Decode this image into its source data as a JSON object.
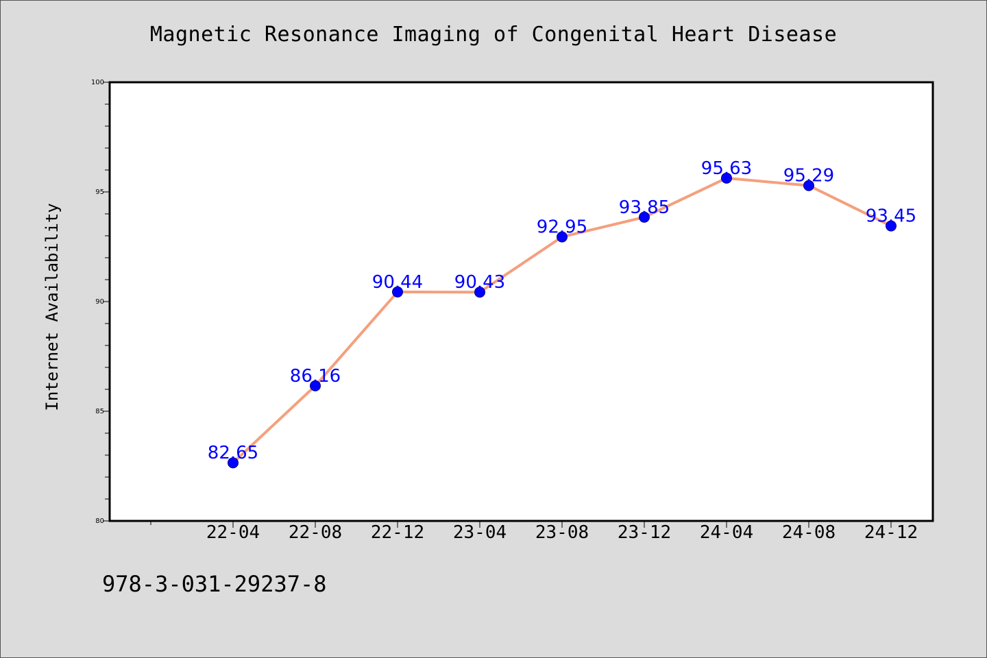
{
  "chart_data": {
    "type": "line",
    "title": "Magnetic Resonance Imaging of Congenital Heart Disease",
    "xlabel": "",
    "ylabel": "Internet Availability",
    "categories": [
      "22-04",
      "22-08",
      "22-12",
      "23-04",
      "23-08",
      "23-12",
      "24-04",
      "24-08",
      "24-12"
    ],
    "series": [
      {
        "values": [
          82.65,
          86.16,
          90.44,
          90.43,
          92.95,
          93.85,
          95.63,
          95.29,
          93.45
        ],
        "labels": [
          "82.65",
          "86.16",
          "90.44",
          "90.43",
          "92.95",
          "93.85",
          "95.63",
          "95.29",
          "93.45"
        ]
      }
    ],
    "ylim": [
      80,
      100
    ],
    "yticks": [
      "80",
      "85",
      "90",
      "95",
      "100"
    ],
    "grid": false,
    "line_color": "#f4a07e",
    "marker_color": "#0000ff",
    "label_color": "#0000ff"
  },
  "footer": {
    "code": "978-3-031-29237-8"
  }
}
